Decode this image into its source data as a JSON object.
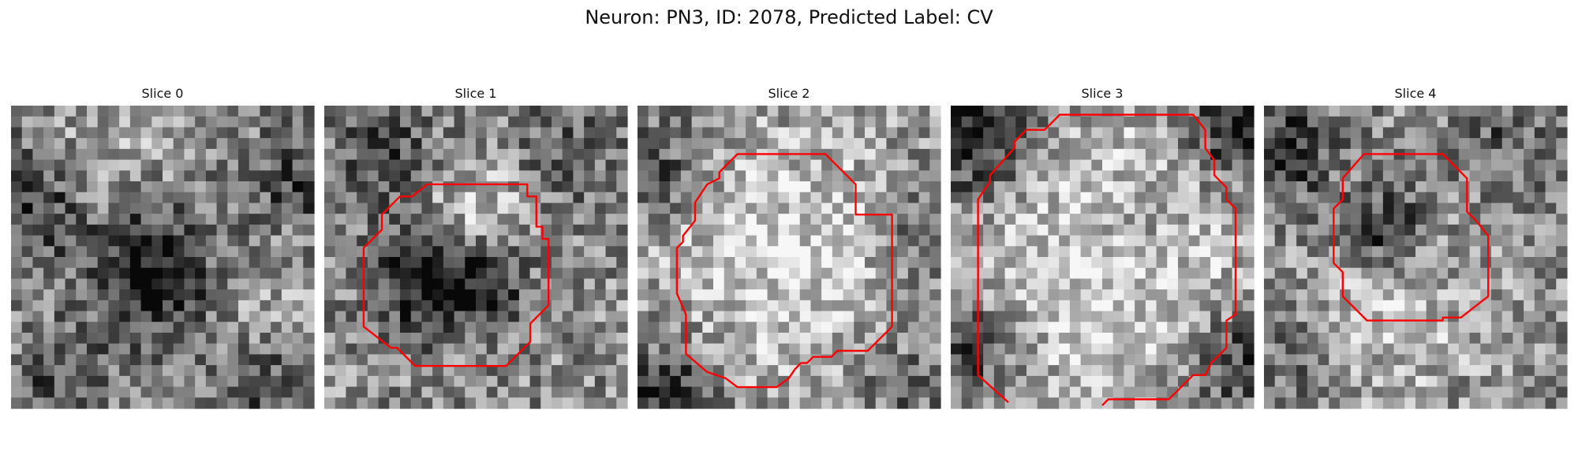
{
  "figure": {
    "title": "Neuron: PN3, ID: 2078, Predicted Label: CV"
  },
  "chart_data": {
    "type": "heatmap",
    "colormap": "gray",
    "axes_visible": false,
    "grid_size": 28,
    "contour_color": "#ff0000",
    "panels": [
      {
        "title": "Slice 0",
        "seed": 11,
        "blobs": [
          {
            "x": 0.48,
            "y": 0.55,
            "r": 0.16,
            "a": -0.55
          },
          {
            "x": 0.08,
            "y": 0.3,
            "r": 0.14,
            "a": -0.35
          },
          {
            "x": 0.95,
            "y": 0.25,
            "r": 0.12,
            "a": -0.3
          },
          {
            "x": 0.85,
            "y": 0.92,
            "r": 0.12,
            "a": -0.25
          },
          {
            "x": 0.15,
            "y": 0.9,
            "r": 0.1,
            "a": -0.25
          },
          {
            "x": 0.3,
            "y": 0.2,
            "r": 0.15,
            "a": 0.2
          },
          {
            "x": 0.75,
            "y": 0.6,
            "r": 0.15,
            "a": 0.15
          }
        ],
        "contour": []
      },
      {
        "title": "Slice 1",
        "seed": 23,
        "blobs": [
          {
            "x": 0.35,
            "y": 0.58,
            "r": 0.12,
            "a": -0.55
          },
          {
            "x": 0.55,
            "y": 0.58,
            "r": 0.1,
            "a": -0.3
          },
          {
            "x": 0.2,
            "y": 0.15,
            "r": 0.14,
            "a": -0.25
          },
          {
            "x": 0.8,
            "y": 0.15,
            "r": 0.14,
            "a": -0.2
          },
          {
            "x": 0.5,
            "y": 0.35,
            "r": 0.14,
            "a": 0.25
          }
        ],
        "contour": [
          [
            0.34,
            0.26
          ],
          [
            0.67,
            0.26
          ],
          [
            0.67,
            0.3
          ],
          [
            0.7,
            0.3
          ],
          [
            0.7,
            0.4
          ],
          [
            0.72,
            0.4
          ],
          [
            0.72,
            0.44
          ],
          [
            0.74,
            0.44
          ],
          [
            0.74,
            0.66
          ],
          [
            0.68,
            0.72
          ],
          [
            0.68,
            0.78
          ],
          [
            0.6,
            0.86
          ],
          [
            0.3,
            0.86
          ],
          [
            0.24,
            0.8
          ],
          [
            0.22,
            0.8
          ],
          [
            0.13,
            0.73
          ],
          [
            0.13,
            0.47
          ],
          [
            0.19,
            0.41
          ],
          [
            0.19,
            0.36
          ],
          [
            0.25,
            0.3
          ],
          [
            0.29,
            0.3
          ]
        ]
      },
      {
        "title": "Slice 2",
        "seed": 37,
        "blobs": [
          {
            "x": 0.5,
            "y": 0.5,
            "r": 0.33,
            "a": 0.28
          },
          {
            "x": 0.1,
            "y": 0.95,
            "r": 0.12,
            "a": -0.45
          },
          {
            "x": 0.05,
            "y": 0.2,
            "r": 0.12,
            "a": -0.3
          },
          {
            "x": 0.95,
            "y": 0.4,
            "r": 0.12,
            "a": -0.3
          },
          {
            "x": 0.85,
            "y": 0.9,
            "r": 0.12,
            "a": -0.2
          }
        ],
        "contour": [
          [
            0.33,
            0.16
          ],
          [
            0.62,
            0.16
          ],
          [
            0.72,
            0.26
          ],
          [
            0.72,
            0.36
          ],
          [
            0.84,
            0.36
          ],
          [
            0.84,
            0.73
          ],
          [
            0.76,
            0.81
          ],
          [
            0.66,
            0.81
          ],
          [
            0.64,
            0.83
          ],
          [
            0.58,
            0.83
          ],
          [
            0.56,
            0.85
          ],
          [
            0.54,
            0.85
          ],
          [
            0.52,
            0.87
          ],
          [
            0.5,
            0.9
          ],
          [
            0.46,
            0.93
          ],
          [
            0.33,
            0.93
          ],
          [
            0.29,
            0.9
          ],
          [
            0.23,
            0.88
          ],
          [
            0.16,
            0.82
          ],
          [
            0.16,
            0.69
          ],
          [
            0.13,
            0.62
          ],
          [
            0.13,
            0.47
          ],
          [
            0.15,
            0.45
          ],
          [
            0.15,
            0.43
          ],
          [
            0.19,
            0.38
          ],
          [
            0.19,
            0.32
          ],
          [
            0.23,
            0.26
          ],
          [
            0.27,
            0.24
          ],
          [
            0.27,
            0.22
          ],
          [
            0.31,
            0.18
          ]
        ]
      },
      {
        "title": "Slice 3",
        "seed": 53,
        "blobs": [
          {
            "x": 0.5,
            "y": 0.52,
            "r": 0.38,
            "a": 0.3
          },
          {
            "x": 0.05,
            "y": 0.1,
            "r": 0.16,
            "a": -0.5
          },
          {
            "x": 0.95,
            "y": 0.08,
            "r": 0.12,
            "a": -0.5
          },
          {
            "x": 0.05,
            "y": 0.8,
            "r": 0.12,
            "a": -0.4
          },
          {
            "x": 0.95,
            "y": 0.85,
            "r": 0.12,
            "a": -0.4
          },
          {
            "x": 0.62,
            "y": 0.42,
            "r": 0.1,
            "a": -0.15
          }
        ],
        "contour": [
          [
            0.19,
            0.98
          ],
          [
            0.09,
            0.89
          ],
          [
            0.09,
            0.31
          ],
          [
            0.13,
            0.25
          ],
          [
            0.13,
            0.23
          ],
          [
            0.21,
            0.14
          ],
          [
            0.21,
            0.12
          ],
          [
            0.25,
            0.08
          ],
          [
            0.31,
            0.08
          ],
          [
            0.36,
            0.03
          ],
          [
            0.8,
            0.03
          ],
          [
            0.84,
            0.08
          ],
          [
            0.84,
            0.14
          ],
          [
            0.87,
            0.18
          ],
          [
            0.87,
            0.23
          ],
          [
            0.91,
            0.27
          ],
          [
            0.91,
            0.31
          ],
          [
            0.94,
            0.34
          ],
          [
            0.94,
            0.69
          ],
          [
            0.91,
            0.71
          ],
          [
            0.91,
            0.8
          ],
          [
            0.89,
            0.82
          ],
          [
            0.86,
            0.85
          ],
          [
            0.84,
            0.89
          ],
          [
            0.8,
            0.89
          ],
          [
            0.74,
            0.95
          ],
          [
            0.72,
            0.97
          ],
          [
            0.52,
            0.97
          ],
          [
            0.5,
            0.99
          ]
        ]
      },
      {
        "title": "Slice 4",
        "seed": 71,
        "blobs": [
          {
            "x": 0.4,
            "y": 0.42,
            "r": 0.1,
            "a": -0.4
          },
          {
            "x": 0.4,
            "y": 0.7,
            "r": 0.2,
            "a": 0.25
          },
          {
            "x": 0.05,
            "y": 0.15,
            "r": 0.12,
            "a": -0.4
          },
          {
            "x": 0.8,
            "y": 0.1,
            "r": 0.12,
            "a": -0.2
          },
          {
            "x": 0.15,
            "y": 0.85,
            "r": 0.12,
            "a": -0.2
          }
        ],
        "contour": [
          [
            0.33,
            0.16
          ],
          [
            0.59,
            0.16
          ],
          [
            0.67,
            0.24
          ],
          [
            0.67,
            0.35
          ],
          [
            0.7,
            0.38
          ],
          [
            0.74,
            0.43
          ],
          [
            0.74,
            0.63
          ],
          [
            0.65,
            0.7
          ],
          [
            0.59,
            0.7
          ],
          [
            0.59,
            0.71
          ],
          [
            0.34,
            0.71
          ],
          [
            0.26,
            0.63
          ],
          [
            0.26,
            0.55
          ],
          [
            0.23,
            0.52
          ],
          [
            0.23,
            0.34
          ],
          [
            0.26,
            0.31
          ],
          [
            0.26,
            0.24
          ]
        ]
      }
    ]
  }
}
